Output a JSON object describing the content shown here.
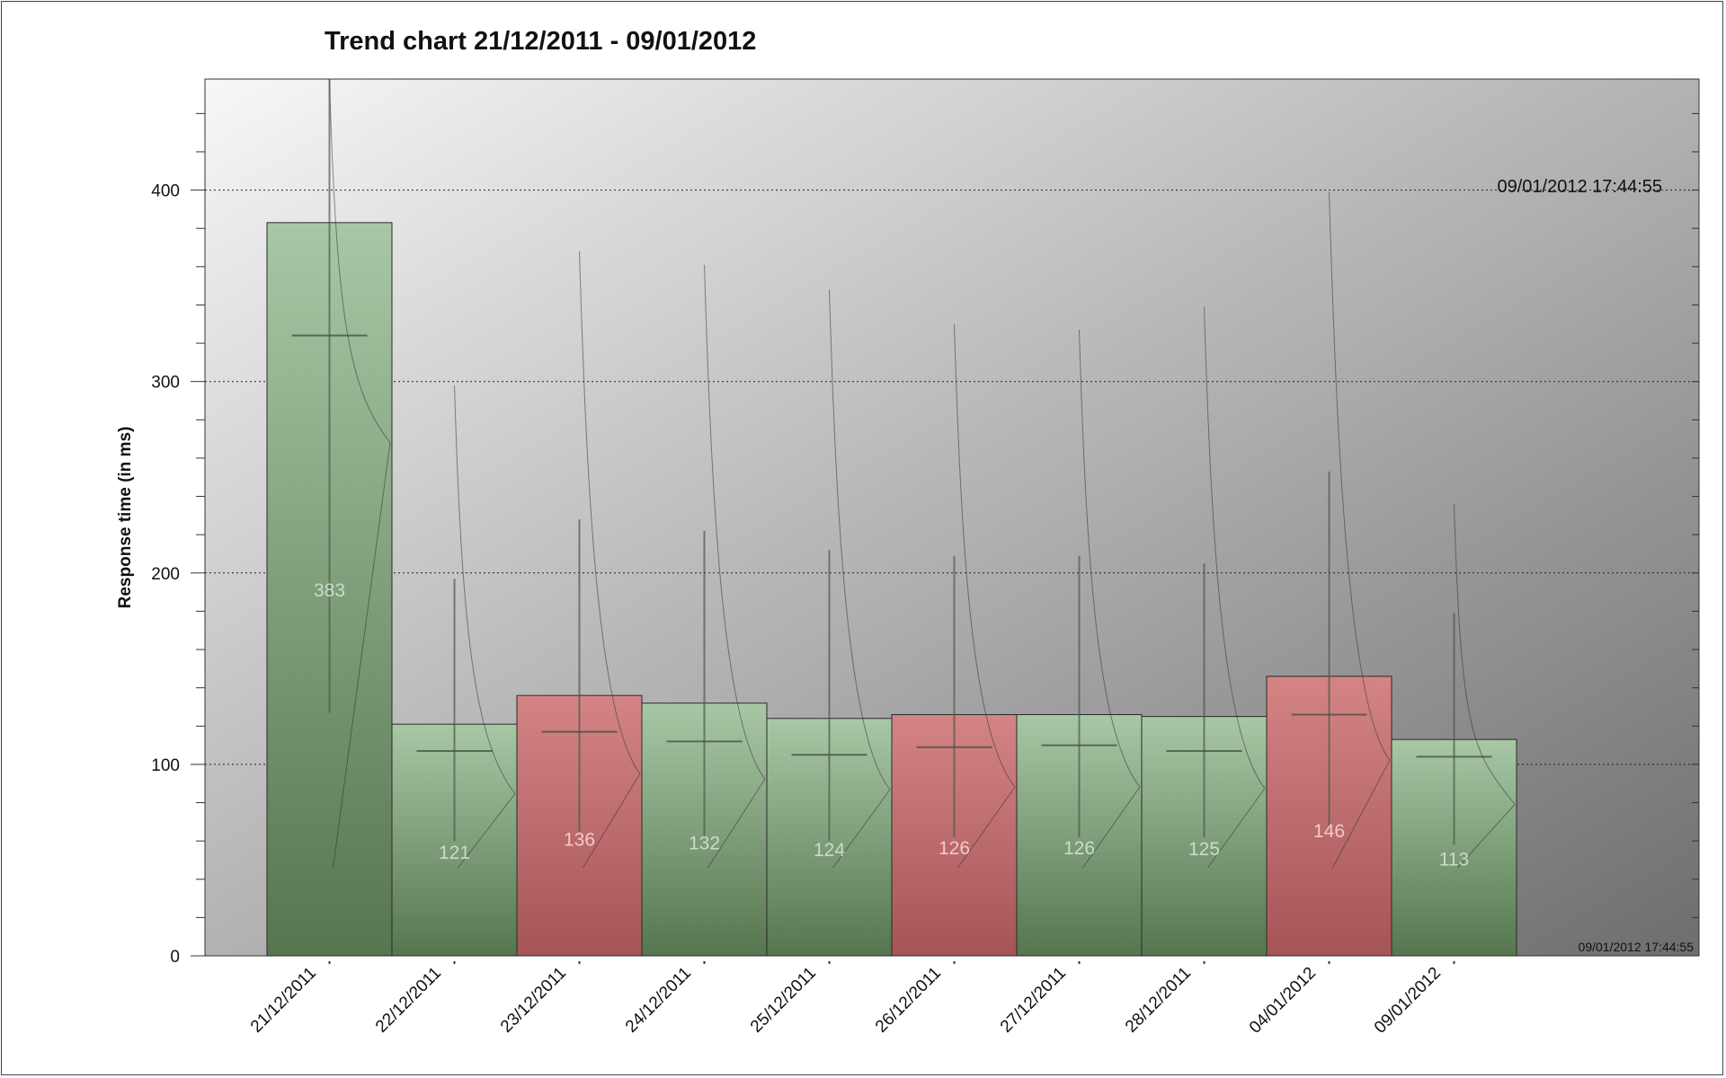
{
  "chart_data": {
    "type": "bar",
    "title": "Trend chart 21/12/2011 - 09/01/2012",
    "ylabel": "Response time (in ms)",
    "xlabel": "",
    "ylim": [
      0,
      458
    ],
    "yticks": [
      0,
      100,
      200,
      300,
      400
    ],
    "grid": "horizontal dotted",
    "timestamp": "09/01/2012 17:44:55",
    "footer_timestamp": "09/01/2012 17:44:55",
    "categories": [
      "21/12/2011",
      "22/12/2011",
      "23/12/2011",
      "24/12/2011",
      "25/12/2011",
      "26/12/2011",
      "27/12/2011",
      "28/12/2011",
      "04/01/2012",
      "09/01/2012"
    ],
    "values": [
      383,
      121,
      136,
      132,
      124,
      126,
      126,
      125,
      146,
      113
    ],
    "status": [
      "ok",
      "ok",
      "bad",
      "ok",
      "ok",
      "bad",
      "ok",
      "ok",
      "bad",
      "ok"
    ],
    "colors": {
      "ok": "#7e9f7e",
      "bad": "#c87474",
      "ok_label": "#c9dcc9",
      "bad_label": "#f2c9c9"
    },
    "whiskers": [
      {
        "median": 324,
        "low": 127,
        "high": 458
      },
      {
        "median": 107,
        "low": 60,
        "high": 197
      },
      {
        "median": 117,
        "low": 65,
        "high": 228
      },
      {
        "median": 112,
        "low": 62,
        "high": 222
      },
      {
        "median": 105,
        "low": 60,
        "high": 212
      },
      {
        "median": 109,
        "low": 62,
        "high": 209
      },
      {
        "median": 110,
        "low": 62,
        "high": 209
      },
      {
        "median": 107,
        "low": 62,
        "high": 205
      },
      {
        "median": 126,
        "low": 68,
        "high": 253
      },
      {
        "median": 104,
        "low": 58,
        "high": 179
      }
    ],
    "distribution_peaks": [
      458,
      298,
      368,
      361,
      348,
      330,
      327,
      339,
      399,
      236
    ]
  }
}
